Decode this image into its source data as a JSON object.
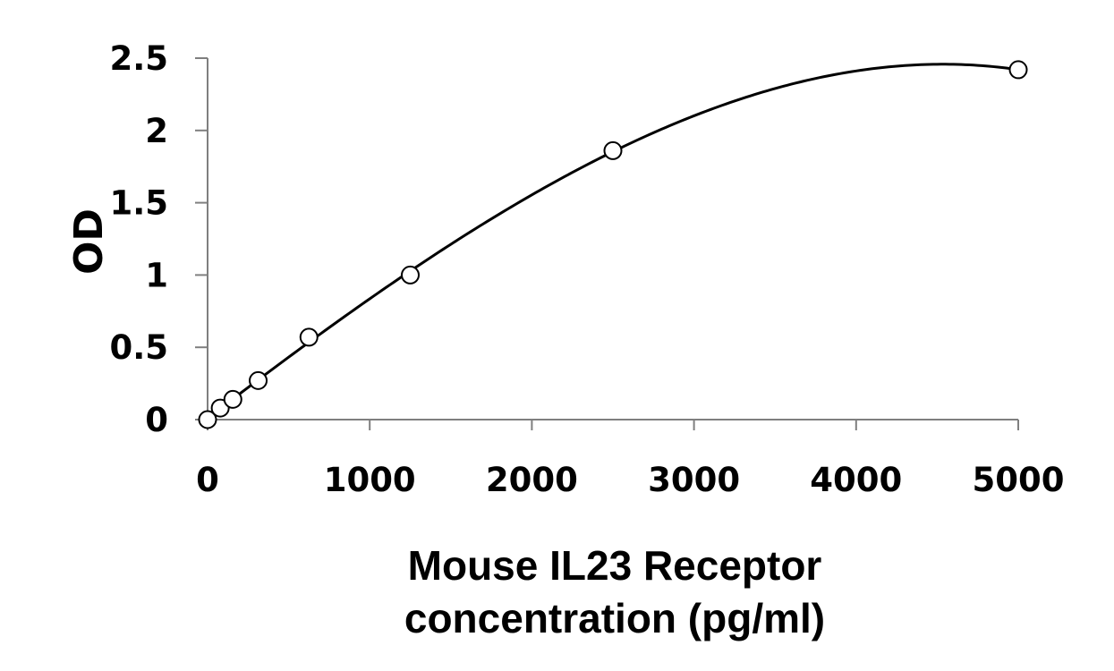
{
  "chart_data": {
    "type": "scatter",
    "title": "",
    "xlabel": [
      "Mouse IL23 Receptor",
      "concentration (pg/ml)"
    ],
    "ylabel": "OD",
    "xlim": [
      0,
      5000
    ],
    "ylim": [
      0,
      2.5
    ],
    "x_ticks": [
      0,
      1000,
      2000,
      3000,
      4000,
      5000
    ],
    "x_tick_labels": [
      "0",
      "1000",
      "2000",
      "3000",
      "4000",
      "5000"
    ],
    "y_ticks": [
      0,
      0.5,
      1,
      1.5,
      2,
      2.5
    ],
    "y_tick_labels": [
      "0",
      "0.5",
      "1",
      "1.5",
      "2",
      "2.5"
    ],
    "grid": false,
    "legend": "none",
    "marker": "open-circle",
    "trendline": "polynomial-fit",
    "series": [
      {
        "x": [
          0,
          78,
          156,
          312,
          625,
          1250,
          2500,
          5000
        ],
        "y": [
          0.0,
          0.08,
          0.14,
          0.27,
          0.57,
          1.0,
          1.86,
          2.42
        ]
      }
    ]
  }
}
